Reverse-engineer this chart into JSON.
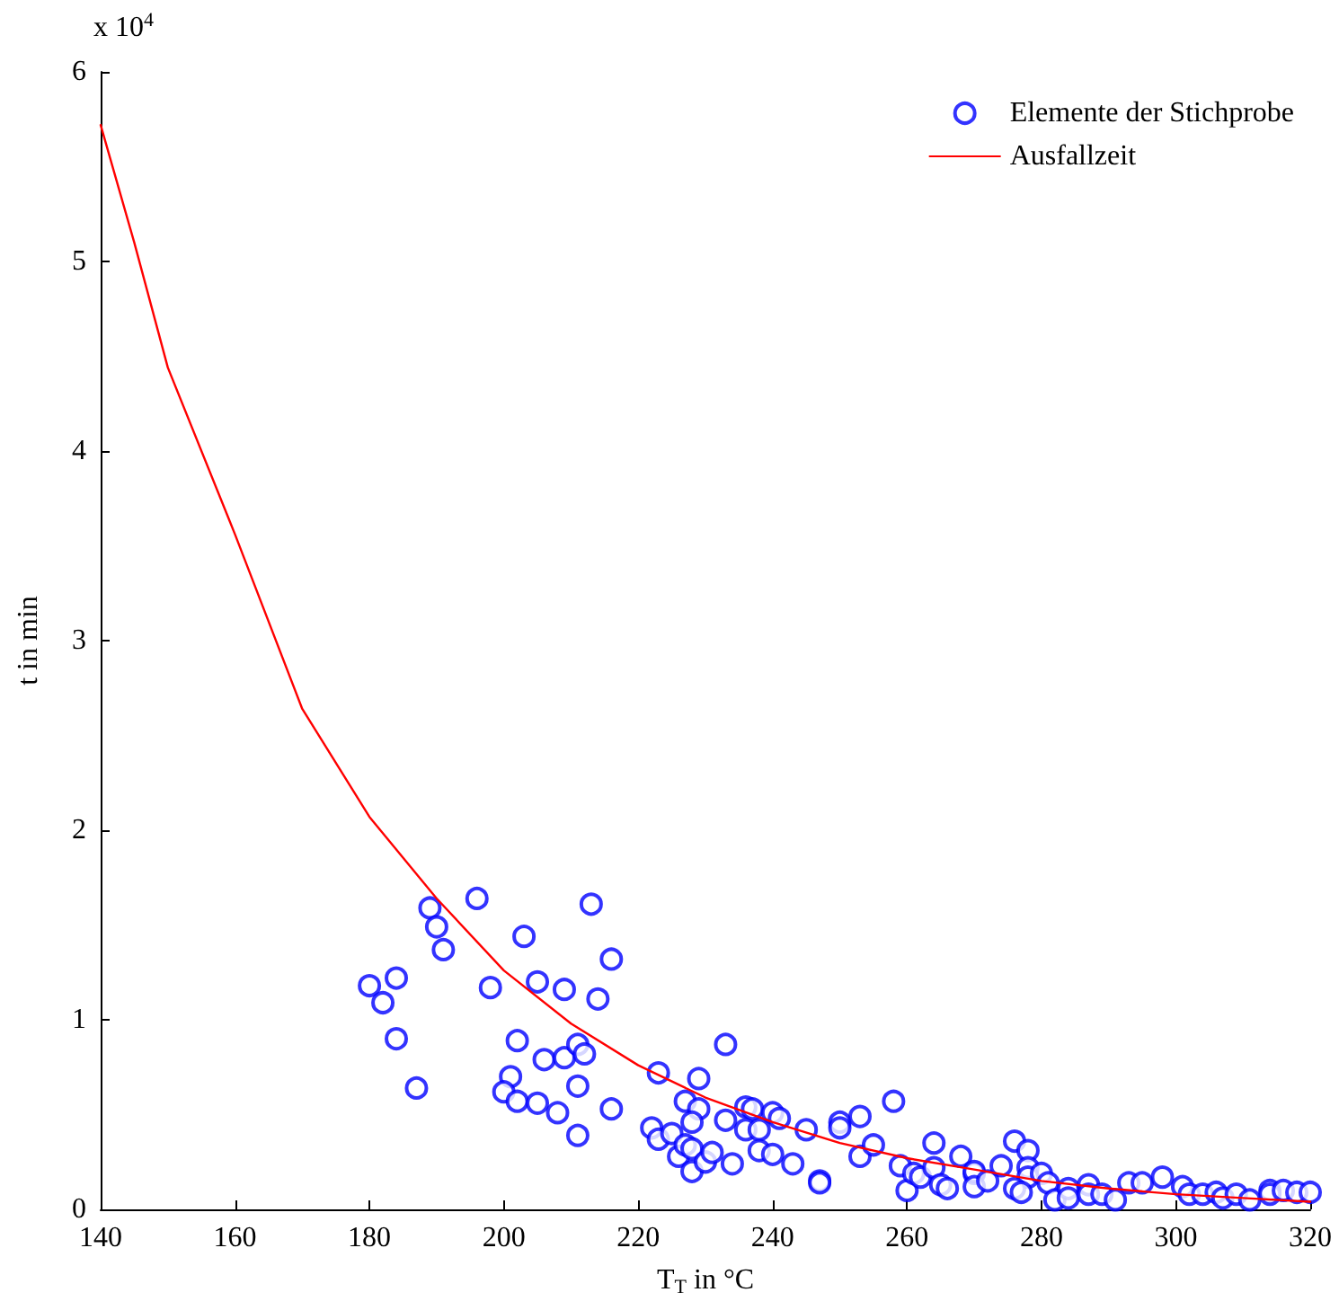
{
  "chart_data": {
    "type": "scatter",
    "xlabel": "T$_{T}$ in °C",
    "ylabel": "t in min",
    "annotations": [
      "x 10$^{4}$"
    ],
    "xlim": [
      140,
      320
    ],
    "xticks": [
      140,
      160,
      180,
      200,
      220,
      240,
      260,
      280,
      300,
      320
    ],
    "ylim": [
      0,
      6
    ],
    "yticks": [
      0,
      1,
      2,
      3,
      4,
      5,
      6
    ],
    "grid": false,
    "legend": "top right",
    "marker": "circle",
    "series": [
      {
        "name": "Elemente der Stichprobe",
        "color": "#0000ff",
        "x": [
          180,
          182,
          184,
          184,
          187,
          189,
          190,
          191,
          196,
          198,
          201,
          200,
          202,
          202,
          203,
          205,
          205,
          206,
          208,
          209,
          209,
          211,
          212,
          211,
          211,
          213,
          216,
          214,
          216,
          223,
          222,
          223,
          229,
          233,
          227,
          229,
          225,
          226,
          227,
          228,
          228,
          228,
          230,
          231,
          233,
          234,
          236,
          237,
          236,
          238,
          238,
          240,
          241,
          240,
          243,
          245,
          247,
          247,
          250,
          250,
          253,
          253,
          255,
          258,
          259,
          260,
          261,
          262,
          264,
          264,
          265,
          266,
          268,
          270,
          270,
          270,
          272,
          274,
          276,
          278,
          278,
          278,
          276,
          277,
          280,
          281,
          282,
          284,
          284,
          287,
          287,
          289,
          291,
          293,
          295,
          298,
          301,
          302,
          304,
          306,
          307,
          309,
          311,
          314,
          314,
          316,
          318,
          320
        ],
        "values": [
          1.18,
          1.09,
          1.22,
          0.9,
          0.64,
          1.59,
          1.49,
          1.37,
          1.64,
          1.17,
          0.7,
          0.62,
          0.57,
          0.89,
          1.44,
          1.2,
          0.56,
          0.79,
          0.51,
          1.16,
          0.8,
          0.87,
          0.82,
          0.65,
          0.39,
          1.61,
          1.32,
          1.11,
          0.53,
          0.72,
          0.43,
          0.37,
          0.69,
          0.87,
          0.57,
          0.53,
          0.4,
          0.28,
          0.34,
          0.32,
          0.2,
          0.46,
          0.25,
          0.3,
          0.47,
          0.24,
          0.54,
          0.53,
          0.42,
          0.42,
          0.31,
          0.51,
          0.48,
          0.29,
          0.24,
          0.42,
          0.15,
          0.14,
          0.46,
          0.43,
          0.49,
          0.28,
          0.34,
          0.57,
          0.23,
          0.1,
          0.19,
          0.17,
          0.35,
          0.22,
          0.13,
          0.11,
          0.28,
          0.19,
          0.2,
          0.12,
          0.15,
          0.23,
          0.36,
          0.31,
          0.22,
          0.17,
          0.11,
          0.09,
          0.19,
          0.14,
          0.05,
          0.11,
          0.06,
          0.13,
          0.08,
          0.08,
          0.05,
          0.14,
          0.14,
          0.17,
          0.12,
          0.08,
          0.08,
          0.09,
          0.06,
          0.08,
          0.05,
          0.1,
          0.08,
          0.1,
          0.09,
          0.09
        ]
      },
      {
        "name": "Ausfallzeit",
        "type": "line",
        "color": "#ff0000",
        "marker": "none",
        "x": [
          140,
          145,
          150,
          160,
          170,
          180,
          190,
          200,
          210,
          220,
          230,
          240,
          250,
          260,
          270,
          280,
          290,
          300,
          310,
          320
        ],
        "values": [
          5.72,
          5.1,
          4.44,
          3.56,
          2.64,
          2.07,
          1.64,
          1.26,
          0.98,
          0.76,
          0.59,
          0.46,
          0.35,
          0.27,
          0.21,
          0.15,
          0.11,
          0.08,
          0.06,
          0.04
        ]
      }
    ]
  }
}
